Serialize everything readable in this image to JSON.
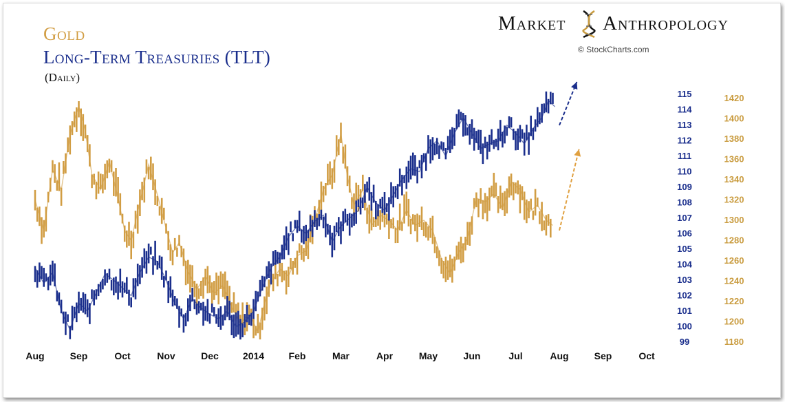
{
  "header": {
    "gold_title": "Gold",
    "tlt_title": "Long-Term Treasuries (TLT)",
    "frequency": "(Daily)"
  },
  "branding": {
    "left_word": "Market",
    "right_word": "Anthropology",
    "copyright": "© StockCharts.com"
  },
  "colors": {
    "gold": "#d19d43",
    "tlt": "#1a2e8c",
    "tlt_arrow": "#1a2e8c",
    "gold_arrow": "#e0a040"
  },
  "chart_data": {
    "type": "line",
    "title": "Gold / Long-Term Treasuries (TLT) (Daily)",
    "x_labels": [
      "Aug",
      "Sep",
      "Oct",
      "Nov",
      "Dec",
      "2014",
      "Feb",
      "Mar",
      "Apr",
      "May",
      "Jun",
      "Jul",
      "Aug",
      "Sep",
      "Oct"
    ],
    "x_range": [
      0,
      14
    ],
    "tlt_axis": {
      "ticks": [
        99,
        100,
        101,
        102,
        103,
        104,
        105,
        106,
        107,
        108,
        109,
        110,
        111,
        112,
        113,
        114,
        115
      ],
      "range": [
        99,
        115
      ]
    },
    "gold_axis": {
      "ticks": [
        1180,
        1200,
        1220,
        1240,
        1260,
        1280,
        1300,
        1320,
        1340,
        1360,
        1380,
        1400,
        1420
      ],
      "range": [
        1180,
        1420
      ]
    },
    "series": [
      {
        "name": "Gold",
        "axis": "gold_axis",
        "x": [
          0,
          0.2,
          0.4,
          0.6,
          0.8,
          1.0,
          1.15,
          1.3,
          1.5,
          1.7,
          1.9,
          2.05,
          2.2,
          2.4,
          2.6,
          2.8,
          3.0,
          3.15,
          3.3,
          3.5,
          3.7,
          3.9,
          4.1,
          4.3,
          4.5,
          4.7,
          4.9,
          5.1,
          5.25,
          5.4,
          5.6,
          5.8,
          6.0,
          6.2,
          6.4,
          6.6,
          6.8,
          7.0,
          7.15,
          7.3,
          7.5,
          7.7,
          7.9,
          8.1,
          8.3,
          8.5,
          8.7,
          8.9,
          9.1,
          9.3,
          9.5,
          9.7,
          9.9,
          10.1,
          10.3,
          10.5,
          10.7,
          10.9,
          11.1,
          11.3,
          11.5,
          11.7,
          11.85
        ],
        "values": [
          1320,
          1290,
          1350,
          1330,
          1385,
          1412,
          1388,
          1345,
          1330,
          1358,
          1322,
          1290,
          1280,
          1318,
          1355,
          1325,
          1292,
          1268,
          1278,
          1250,
          1232,
          1245,
          1228,
          1236,
          1215,
          1198,
          1208,
          1190,
          1218,
          1238,
          1252,
          1245,
          1265,
          1270,
          1300,
          1330,
          1345,
          1385,
          1343,
          1315,
          1330,
          1295,
          1305,
          1300,
          1290,
          1310,
          1295,
          1300,
          1290,
          1262,
          1248,
          1268,
          1282,
          1322,
          1318,
          1326,
          1312,
          1338,
          1330,
          1308,
          1315,
          1300,
          1295
        ]
      },
      {
        "name": "Long-Term Treasuries (TLT)",
        "axis": "tlt_axis",
        "x": [
          0,
          0.2,
          0.4,
          0.6,
          0.8,
          1.0,
          1.2,
          1.4,
          1.6,
          1.8,
          2.0,
          2.2,
          2.4,
          2.6,
          2.8,
          3.0,
          3.2,
          3.4,
          3.6,
          3.8,
          4.0,
          4.2,
          4.4,
          4.6,
          4.8,
          5.0,
          5.2,
          5.4,
          5.6,
          5.8,
          6.0,
          6.2,
          6.4,
          6.6,
          6.8,
          7.0,
          7.2,
          7.4,
          7.6,
          7.8,
          8.0,
          8.2,
          8.4,
          8.6,
          8.8,
          9.0,
          9.2,
          9.4,
          9.6,
          9.8,
          10.0,
          10.2,
          10.4,
          10.6,
          10.8,
          11.0,
          11.2,
          11.4,
          11.6,
          11.75,
          11.9
        ],
        "values": [
          103.8,
          102.8,
          103.5,
          101.0,
          99.8,
          101.5,
          101.0,
          102.2,
          103.4,
          103.0,
          102.5,
          102.0,
          103.5,
          104.5,
          104.2,
          103.0,
          101.5,
          100.5,
          101.8,
          101.2,
          100.8,
          100.5,
          101.0,
          100.0,
          100.3,
          101.0,
          102.5,
          103.8,
          104.5,
          105.8,
          106.5,
          106.0,
          106.8,
          107.2,
          105.5,
          106.5,
          107.0,
          107.5,
          109.0,
          108.0,
          107.5,
          108.5,
          109.5,
          110.2,
          110.0,
          111.5,
          112.0,
          111.0,
          112.5,
          113.5,
          112.5,
          111.5,
          111.8,
          112.0,
          113.0,
          112.5,
          111.8,
          112.8,
          113.5,
          114.6,
          114.2
        ]
      }
    ],
    "annotations": [
      {
        "label": "TLT projection arrow",
        "color": "#1a2e8c",
        "from": [
          12.0,
          113.0
        ],
        "to": [
          12.4,
          115.8
        ],
        "axis": "tlt_axis",
        "style": "dashed"
      },
      {
        "label": "Gold projection arrow",
        "color": "#e0a040",
        "from": [
          12.0,
          1290
        ],
        "to": [
          12.45,
          1370
        ],
        "axis": "gold_axis",
        "style": "dashed"
      }
    ]
  }
}
